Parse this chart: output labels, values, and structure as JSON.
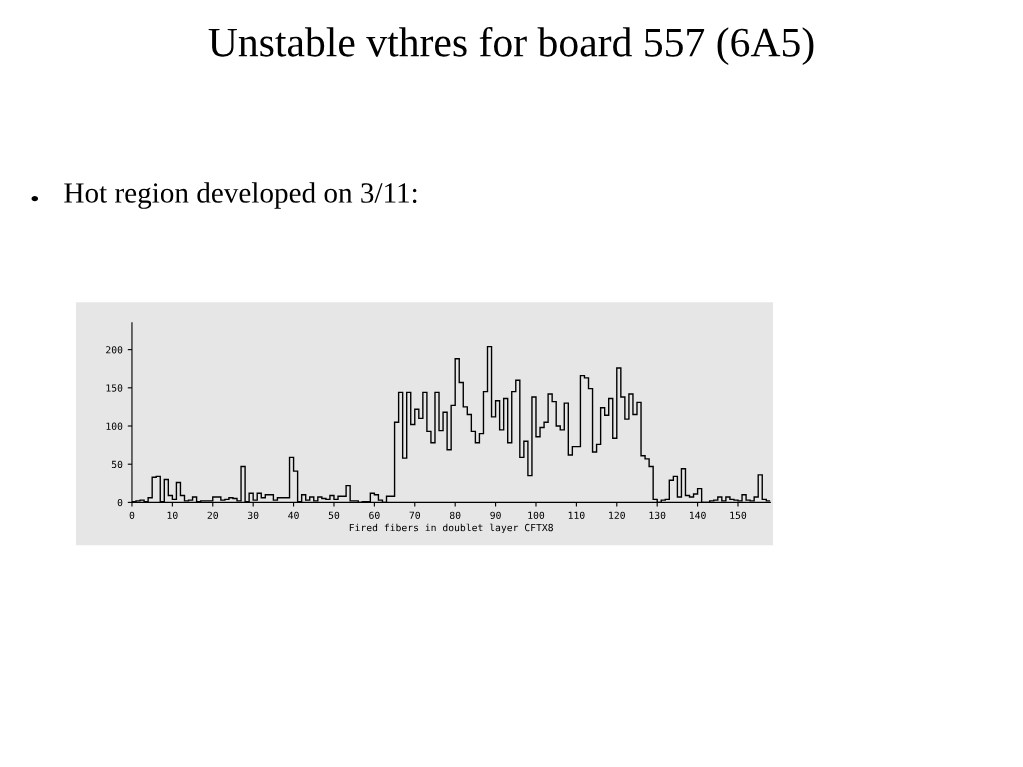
{
  "chart_data": {
    "type": "histogram",
    "title": "Unstable vthres for board 557 (6A5)",
    "annotations": [
      "Hot region developed on 3/11:"
    ],
    "xlabel": "Fired fibers in doublet layer CFTX8",
    "bins": [
      0,
      1,
      2,
      3,
      4,
      5,
      6,
      7,
      8,
      9,
      10,
      11,
      12,
      13,
      14,
      15,
      16,
      17,
      18,
      19,
      20,
      21,
      22,
      23,
      24,
      25,
      26,
      27,
      28,
      29,
      30,
      31,
      32,
      33,
      34,
      35,
      36,
      37,
      38,
      39,
      40,
      41,
      42,
      43,
      44,
      45,
      46,
      47,
      48,
      49,
      50,
      51,
      52,
      53,
      54,
      55,
      56,
      57,
      58,
      59,
      60,
      61,
      62,
      63,
      64,
      65,
      66,
      67,
      68,
      69,
      70,
      71,
      72,
      73,
      74,
      75,
      76,
      77,
      78,
      79,
      80,
      81,
      82,
      83,
      84,
      85,
      86,
      87,
      88,
      89,
      90,
      91,
      92,
      93,
      94,
      95,
      96,
      97,
      98,
      99,
      100,
      101,
      102,
      103,
      104,
      105,
      106,
      107,
      108,
      109,
      110,
      111,
      112,
      113,
      114,
      115,
      116,
      117,
      118,
      119,
      120,
      121,
      122,
      123,
      124,
      125,
      126,
      127,
      128,
      129,
      130,
      131,
      132,
      133,
      134,
      135,
      136,
      137,
      138,
      139,
      140,
      141,
      142,
      143,
      144,
      145,
      146,
      147,
      148,
      149,
      150,
      151,
      152,
      153,
      154,
      155,
      156,
      157,
      158
    ],
    "values": [
      1,
      2,
      3,
      1,
      6,
      33,
      34,
      1,
      30,
      9,
      4,
      26,
      9,
      2,
      3,
      7,
      1,
      2,
      2,
      2,
      7,
      7,
      3,
      4,
      6,
      5,
      2,
      47,
      1,
      12,
      3,
      12,
      6,
      10,
      10,
      3,
      6,
      6,
      6,
      59,
      41,
      1,
      10,
      3,
      7,
      2,
      7,
      5,
      4,
      9,
      4,
      8,
      8,
      22,
      2,
      2,
      0,
      1,
      1,
      12,
      10,
      3,
      0,
      8,
      8,
      105,
      144,
      58,
      144,
      102,
      122,
      110,
      144,
      93,
      78,
      144,
      94,
      118,
      69,
      127,
      188,
      157,
      125,
      115,
      93,
      78,
      90,
      145,
      204,
      112,
      133,
      95,
      136,
      78,
      145,
      160,
      59,
      80,
      35,
      138,
      86,
      98,
      105,
      142,
      132,
      100,
      95,
      130,
      62,
      73,
      73,
      166,
      163,
      149,
      66,
      76,
      124,
      114,
      136,
      84,
      176,
      138,
      109,
      142,
      115,
      131,
      61,
      57,
      47,
      4,
      0,
      3,
      4,
      29,
      34,
      7,
      44,
      9,
      7,
      11,
      18,
      0,
      0,
      2,
      3,
      7,
      2,
      7,
      4,
      3,
      2,
      10,
      3,
      2,
      7,
      36,
      4,
      2
    ],
    "color": "#000000",
    "xlim": [
      0,
      158
    ],
    "xticks": [
      0,
      10,
      20,
      30,
      40,
      50,
      60,
      70,
      80,
      90,
      100,
      110,
      120,
      130,
      140,
      150
    ],
    "ylim": [
      0,
      235
    ],
    "yticks": [
      0,
      50,
      100,
      150,
      200
    ],
    "grid": false
  }
}
